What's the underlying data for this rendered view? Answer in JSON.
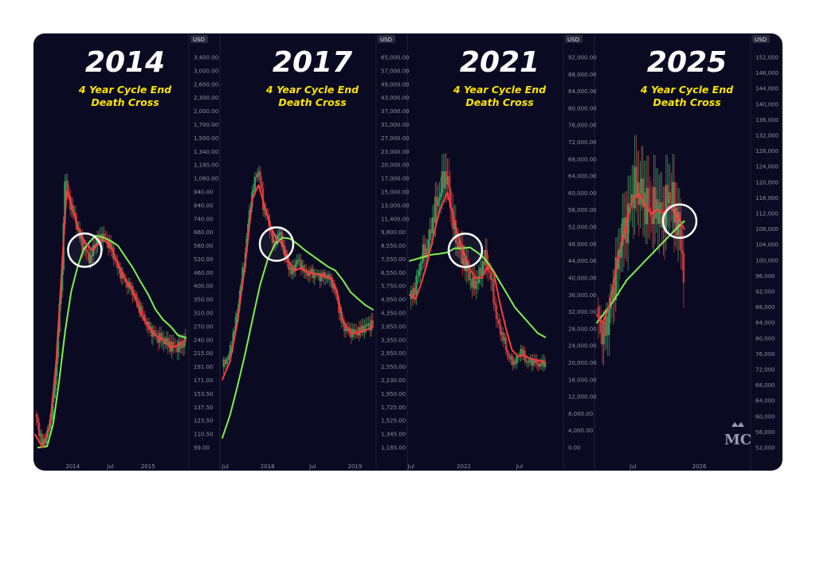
{
  "colors": {
    "background": "#0a0a22",
    "slow_ma": "#7ef04a",
    "fast_ma": "#ff3b3b",
    "candle_up": "#2e9c5c",
    "candle_down": "#c23a3a",
    "title_text": "#ffffff",
    "subtitle_text": "#ffe400",
    "circle": "#ffffff"
  },
  "watermark": {
    "text": "MC",
    "icon": "crown-icon"
  },
  "chart_data": [
    {
      "type": "candlestick",
      "title": "2014",
      "subtitle_line1": "4 Year Cycle End",
      "subtitle_line2": "Death Cross",
      "currency": "USD",
      "y_ticks": [
        "3,400.00",
        "3,000.00",
        "2,600.00",
        "2,300.00",
        "2,000.00",
        "1,700.00",
        "1,500.00",
        "1,340.00",
        "1,180.00",
        "1,060.00",
        "940.00",
        "840.00",
        "740.00",
        "660.00",
        "580.00",
        "520.00",
        "460.00",
        "400.00",
        "350.00",
        "310.00",
        "270.00",
        "240.00",
        "215.00",
        "191.00",
        "171.00",
        "153.50",
        "137.50",
        "123.50",
        "110.50",
        "99.00"
      ],
      "x_ticks": [
        {
          "label": "2014",
          "t": 0.25
        },
        {
          "label": "Jul",
          "t": 0.5
        },
        {
          "label": "2015",
          "t": 0.75
        }
      ],
      "price": [
        [
          0,
          130
        ],
        [
          0.05,
          100
        ],
        [
          0.1,
          120
        ],
        [
          0.14,
          180
        ],
        [
          0.18,
          450
        ],
        [
          0.2,
          1100
        ],
        [
          0.22,
          900
        ],
        [
          0.25,
          800
        ],
        [
          0.3,
          620
        ],
        [
          0.33,
          560
        ],
        [
          0.37,
          520
        ],
        [
          0.4,
          600
        ],
        [
          0.45,
          640
        ],
        [
          0.5,
          580
        ],
        [
          0.55,
          480
        ],
        [
          0.6,
          420
        ],
        [
          0.65,
          380
        ],
        [
          0.7,
          320
        ],
        [
          0.75,
          270
        ],
        [
          0.8,
          250
        ],
        [
          0.85,
          240
        ],
        [
          0.9,
          230
        ],
        [
          0.95,
          225
        ],
        [
          1,
          240
        ]
      ],
      "fast_ma": [
        [
          0,
          110
        ],
        [
          0.05,
          95
        ],
        [
          0.1,
          120
        ],
        [
          0.14,
          200
        ],
        [
          0.18,
          500
        ],
        [
          0.21,
          950
        ],
        [
          0.24,
          850
        ],
        [
          0.28,
          700
        ],
        [
          0.33,
          600
        ],
        [
          0.38,
          560
        ],
        [
          0.45,
          620
        ],
        [
          0.5,
          580
        ],
        [
          0.55,
          500
        ],
        [
          0.6,
          430
        ],
        [
          0.65,
          380
        ],
        [
          0.7,
          310
        ],
        [
          0.75,
          270
        ],
        [
          0.8,
          250
        ],
        [
          0.85,
          240
        ],
        [
          0.9,
          225
        ],
        [
          0.95,
          230
        ],
        [
          1,
          240
        ]
      ],
      "slow_ma": [
        [
          0.02,
          99
        ],
        [
          0.08,
          100
        ],
        [
          0.12,
          120
        ],
        [
          0.16,
          170
        ],
        [
          0.2,
          260
        ],
        [
          0.24,
          380
        ],
        [
          0.28,
          480
        ],
        [
          0.32,
          560
        ],
        [
          0.36,
          600
        ],
        [
          0.4,
          640
        ],
        [
          0.45,
          630
        ],
        [
          0.5,
          610
        ],
        [
          0.55,
          580
        ],
        [
          0.6,
          530
        ],
        [
          0.65,
          480
        ],
        [
          0.7,
          420
        ],
        [
          0.75,
          370
        ],
        [
          0.8,
          320
        ],
        [
          0.85,
          290
        ],
        [
          0.9,
          270
        ],
        [
          0.95,
          250
        ],
        [
          1,
          245
        ]
      ],
      "death_cross": {
        "t": 0.33,
        "price": 560
      }
    },
    {
      "type": "candlestick",
      "title": "2017",
      "subtitle_line1": "4 Year Cycle End",
      "subtitle_line2": "Death Cross",
      "currency": "USD",
      "y_ticks": [
        "65,000.00",
        "57,000.00",
        "49,000.00",
        "43,000.00",
        "37,000.00",
        "31,000.00",
        "27,000.00",
        "23,000.00",
        "20,000.00",
        "17,000.00",
        "15,000.00",
        "13,000.00",
        "11,400.00",
        "9,800.00",
        "8,550.00",
        "7,550.00",
        "6,550.00",
        "5,750.00",
        "4,950.00",
        "4,350.00",
        "3,850.00",
        "3,350.00",
        "2,950.00",
        "2,550.00",
        "2,230.00",
        "1,950.00",
        "1,725.00",
        "1,525.00",
        "1,345.00",
        "1,185.00"
      ],
      "x_ticks": [
        {
          "label": "Jul",
          "t": 0.02
        },
        {
          "label": "2018",
          "t": 0.3
        },
        {
          "label": "Jul",
          "t": 0.6
        },
        {
          "label": "2019",
          "t": 0.88
        }
      ],
      "price": [
        [
          0,
          2550
        ],
        [
          0.05,
          2950
        ],
        [
          0.1,
          4350
        ],
        [
          0.15,
          7550
        ],
        [
          0.2,
          15000
        ],
        [
          0.24,
          19000
        ],
        [
          0.27,
          13000
        ],
        [
          0.3,
          11400
        ],
        [
          0.34,
          8550
        ],
        [
          0.38,
          9800
        ],
        [
          0.42,
          7550
        ],
        [
          0.46,
          6550
        ],
        [
          0.5,
          7550
        ],
        [
          0.55,
          6550
        ],
        [
          0.6,
          6550
        ],
        [
          0.65,
          6350
        ],
        [
          0.7,
          6350
        ],
        [
          0.74,
          5750
        ],
        [
          0.78,
          4350
        ],
        [
          0.8,
          3850
        ],
        [
          0.85,
          3650
        ],
        [
          0.9,
          3650
        ],
        [
          0.95,
          3850
        ],
        [
          1,
          3950
        ]
      ],
      "fast_ma": [
        [
          0,
          2250
        ],
        [
          0.05,
          2700
        ],
        [
          0.1,
          4000
        ],
        [
          0.15,
          7000
        ],
        [
          0.2,
          14000
        ],
        [
          0.24,
          16000
        ],
        [
          0.28,
          13000
        ],
        [
          0.32,
          10500
        ],
        [
          0.36,
          9200
        ],
        [
          0.4,
          8700
        ],
        [
          0.44,
          7400
        ],
        [
          0.48,
          6700
        ],
        [
          0.52,
          6900
        ],
        [
          0.56,
          6600
        ],
        [
          0.6,
          6500
        ],
        [
          0.66,
          6400
        ],
        [
          0.72,
          6200
        ],
        [
          0.76,
          5500
        ],
        [
          0.8,
          4100
        ],
        [
          0.85,
          3600
        ],
        [
          0.9,
          3600
        ],
        [
          0.95,
          3700
        ],
        [
          1,
          3850
        ]
      ],
      "slow_ma": [
        [
          0,
          1300
        ],
        [
          0.05,
          1600
        ],
        [
          0.1,
          2100
        ],
        [
          0.15,
          2900
        ],
        [
          0.2,
          4100
        ],
        [
          0.25,
          5800
        ],
        [
          0.3,
          7500
        ],
        [
          0.35,
          8700
        ],
        [
          0.4,
          9300
        ],
        [
          0.45,
          9200
        ],
        [
          0.5,
          8700
        ],
        [
          0.55,
          8200
        ],
        [
          0.6,
          7800
        ],
        [
          0.65,
          7400
        ],
        [
          0.7,
          7000
        ],
        [
          0.75,
          6700
        ],
        [
          0.8,
          6100
        ],
        [
          0.85,
          5400
        ],
        [
          0.9,
          5000
        ],
        [
          0.95,
          4700
        ],
        [
          1,
          4500
        ]
      ],
      "death_cross": {
        "t": 0.36,
        "price": 8700
      }
    },
    {
      "type": "candlestick",
      "title": "2021",
      "subtitle_line1": "4 Year Cycle End",
      "subtitle_line2": "Death Cross",
      "currency": "USD",
      "y_ticks": [
        "92,000.00",
        "88,000.00",
        "84,000.00",
        "80,000.00",
        "76,000.00",
        "72,000.00",
        "68,000.00",
        "64,000.00",
        "60,000.00",
        "56,000.00",
        "52,000.00",
        "48,000.00",
        "44,000.00",
        "40,000.00",
        "36,000.00",
        "32,000.00",
        "28,000.00",
        "24,000.00",
        "20,000.00",
        "16,000.00",
        "12,000.00",
        "8,000.00",
        "4,000.00",
        "0.00"
      ],
      "x_ticks": [
        {
          "label": "Jul",
          "t": 0.01
        },
        {
          "label": "2022",
          "t": 0.36
        },
        {
          "label": "Jul",
          "t": 0.73
        }
      ],
      "price": [
        [
          0,
          35000
        ],
        [
          0.04,
          38000
        ],
        [
          0.08,
          45000
        ],
        [
          0.12,
          47000
        ],
        [
          0.16,
          55000
        ],
        [
          0.2,
          60000
        ],
        [
          0.24,
          65000
        ],
        [
          0.27,
          58000
        ],
        [
          0.3,
          50000
        ],
        [
          0.34,
          46000
        ],
        [
          0.38,
          42000
        ],
        [
          0.42,
          38000
        ],
        [
          0.46,
          40000
        ],
        [
          0.5,
          45000
        ],
        [
          0.54,
          40000
        ],
        [
          0.58,
          30000
        ],
        [
          0.62,
          26000
        ],
        [
          0.66,
          21000
        ],
        [
          0.7,
          20000
        ],
        [
          0.74,
          23000
        ],
        [
          0.78,
          20000
        ],
        [
          0.82,
          20500
        ],
        [
          0.86,
          19500
        ],
        [
          0.9,
          20000
        ]
      ],
      "fast_ma": [
        [
          0,
          36000
        ],
        [
          0.04,
          35000
        ],
        [
          0.08,
          39000
        ],
        [
          0.12,
          44000
        ],
        [
          0.16,
          50000
        ],
        [
          0.2,
          56000
        ],
        [
          0.25,
          60000
        ],
        [
          0.28,
          56000
        ],
        [
          0.32,
          50000
        ],
        [
          0.36,
          46000
        ],
        [
          0.4,
          42000
        ],
        [
          0.44,
          40000
        ],
        [
          0.48,
          40000
        ],
        [
          0.52,
          43000
        ],
        [
          0.56,
          41000
        ],
        [
          0.6,
          34000
        ],
        [
          0.64,
          28000
        ],
        [
          0.68,
          23000
        ],
        [
          0.72,
          21500
        ],
        [
          0.76,
          21800
        ],
        [
          0.8,
          21000
        ],
        [
          0.84,
          20600
        ],
        [
          0.88,
          20300
        ],
        [
          0.9,
          20000
        ]
      ],
      "slow_ma": [
        [
          0,
          44000
        ],
        [
          0.05,
          44500
        ],
        [
          0.1,
          45000
        ],
        [
          0.15,
          45500
        ],
        [
          0.2,
          45700
        ],
        [
          0.25,
          46000
        ],
        [
          0.3,
          47000
        ],
        [
          0.35,
          47000
        ],
        [
          0.4,
          47200
        ],
        [
          0.45,
          46000
        ],
        [
          0.5,
          44500
        ],
        [
          0.55,
          42000
        ],
        [
          0.6,
          39000
        ],
        [
          0.65,
          36000
        ],
        [
          0.7,
          33000
        ],
        [
          0.75,
          31000
        ],
        [
          0.8,
          29000
        ],
        [
          0.85,
          27000
        ],
        [
          0.9,
          26000
        ]
      ],
      "death_cross": {
        "t": 0.37,
        "price": 46500
      }
    },
    {
      "type": "candlestick",
      "title": "2025",
      "subtitle_line1": "4 Year Cycle End",
      "subtitle_line2": "Death Cross",
      "currency": "USD",
      "y_ticks": [
        "152,000",
        "148,000",
        "144,000",
        "140,000",
        "136,000",
        "132,000",
        "128,000",
        "124,000",
        "120,000",
        "116,000",
        "112,000",
        "108,000",
        "104,000",
        "100,000",
        "96,000",
        "92,000",
        "88,000",
        "84,000",
        "80,000",
        "76,000",
        "72,000",
        "68,000",
        "64,000",
        "60,000",
        "56,000",
        "52,000"
      ],
      "x_ticks": [
        {
          "label": "Jul",
          "t": 0.24
        },
        {
          "label": "2026",
          "t": 0.68
        }
      ],
      "price": [
        [
          0,
          88000
        ],
        [
          0.04,
          80000
        ],
        [
          0.08,
          86000
        ],
        [
          0.12,
          95000
        ],
        [
          0.16,
          105000
        ],
        [
          0.2,
          110000
        ],
        [
          0.24,
          118000
        ],
        [
          0.28,
          118000
        ],
        [
          0.32,
          115000
        ],
        [
          0.36,
          112000
        ],
        [
          0.4,
          114000
        ],
        [
          0.44,
          110000
        ],
        [
          0.48,
          118000
        ],
        [
          0.52,
          112000
        ],
        [
          0.55,
          108000
        ],
        [
          0.58,
          96000
        ]
      ],
      "fast_ma": [
        [
          0,
          86000
        ],
        [
          0.04,
          84000
        ],
        [
          0.08,
          88000
        ],
        [
          0.12,
          96000
        ],
        [
          0.16,
          104000
        ],
        [
          0.2,
          110000
        ],
        [
          0.24,
          116000
        ],
        [
          0.28,
          117000
        ],
        [
          0.32,
          114000
        ],
        [
          0.36,
          112000
        ],
        [
          0.4,
          113000
        ],
        [
          0.44,
          112000
        ],
        [
          0.48,
          114000
        ],
        [
          0.52,
          112000
        ],
        [
          0.55,
          110000
        ],
        [
          0.58,
          108000
        ]
      ],
      "slow_ma": [
        [
          0,
          84000
        ],
        [
          0.05,
          86500
        ],
        [
          0.1,
          89000
        ],
        [
          0.15,
          92000
        ],
        [
          0.2,
          95000
        ],
        [
          0.25,
          97000
        ],
        [
          0.3,
          99000
        ],
        [
          0.35,
          101000
        ],
        [
          0.4,
          103000
        ],
        [
          0.45,
          105000
        ],
        [
          0.5,
          107000
        ],
        [
          0.55,
          109000
        ],
        [
          0.58,
          110000
        ]
      ],
      "death_cross": {
        "t": 0.55,
        "price": 110000
      }
    }
  ]
}
